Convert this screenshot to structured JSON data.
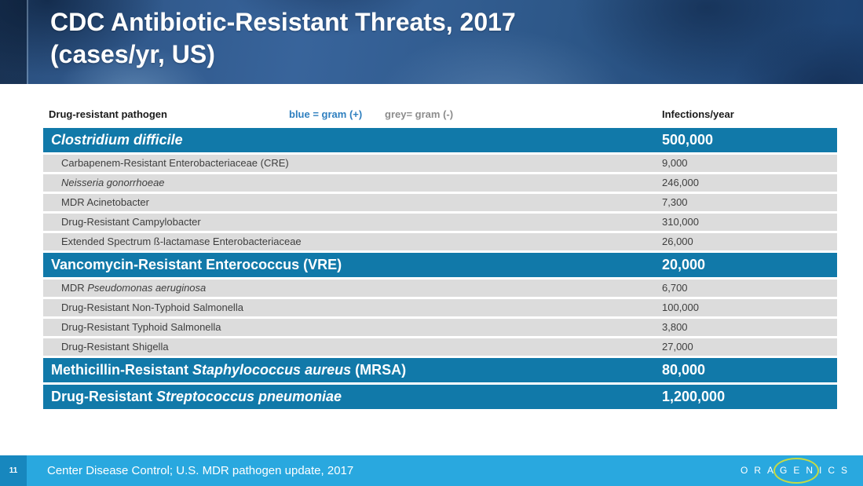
{
  "header": {
    "title_line1": "CDC Antibiotic-Resistant Threats, 2017",
    "title_line2": "(cases/yr, US)"
  },
  "table": {
    "pathogen_header": "Drug-resistant pathogen",
    "legend_gram_positive": "blue = gram (+)",
    "legend_gram_negative": "grey= gram (-)",
    "infections_header": "Infections/year",
    "rows": [
      {
        "type": "blue",
        "name_parts": [
          {
            "text": "Clostridium difficile",
            "italic": true
          }
        ],
        "value": "500,000"
      },
      {
        "type": "grey",
        "name_parts": [
          {
            "text": "Carbapenem-Resistant Enterobacteriaceae (CRE)",
            "italic": false
          }
        ],
        "value": "9,000"
      },
      {
        "type": "grey",
        "name_parts": [
          {
            "text": "Neisseria gonorrhoeae",
            "italic": true
          }
        ],
        "value": "246,000"
      },
      {
        "type": "grey",
        "name_parts": [
          {
            "text": "MDR Acinetobacter",
            "italic": false
          }
        ],
        "value": "7,300"
      },
      {
        "type": "grey",
        "name_parts": [
          {
            "text": "Drug-Resistant Campylobacter",
            "italic": false
          }
        ],
        "value": "310,000"
      },
      {
        "type": "grey",
        "name_parts": [
          {
            "text": "Extended Spectrum ß-lactamase Enterobacteriaceae",
            "italic": false
          }
        ],
        "value": "26,000"
      },
      {
        "type": "blue",
        "name_parts": [
          {
            "text": "Vancomycin-Resistant Enterococcus (VRE)",
            "italic": false
          }
        ],
        "value": "20,000"
      },
      {
        "type": "grey",
        "name_parts": [
          {
            "text": "MDR ",
            "italic": false
          },
          {
            "text": "Pseudomonas aeruginosa",
            "italic": true
          }
        ],
        "value": "6,700"
      },
      {
        "type": "grey",
        "name_parts": [
          {
            "text": "Drug-Resistant Non-Typhoid Salmonella",
            "italic": false
          }
        ],
        "value": "100,000"
      },
      {
        "type": "grey",
        "name_parts": [
          {
            "text": "Drug-Resistant Typhoid Salmonella",
            "italic": false
          }
        ],
        "value": "3,800"
      },
      {
        "type": "grey",
        "name_parts": [
          {
            "text": "Drug-Resistant Shigella",
            "italic": false
          }
        ],
        "value": "27,000"
      },
      {
        "type": "blue",
        "name_parts": [
          {
            "text": "Methicillin-Resistant ",
            "italic": false
          },
          {
            "text": "Staphylococcus aureus",
            "italic": true
          },
          {
            "text": " (MRSA)",
            "italic": false
          }
        ],
        "value": "80,000"
      },
      {
        "type": "blue",
        "name_parts": [
          {
            "text": "Drug-Resistant ",
            "italic": false
          },
          {
            "text": "Streptococcus pneumoniae",
            "italic": true
          }
        ],
        "value": "1,200,000"
      }
    ]
  },
  "footer": {
    "slide_number": "11",
    "citation": "Center Disease Control; U.S. MDR pathogen update, 2017",
    "logo_text": "ORAGENICS"
  },
  "colors": {
    "row_blue": "#1179a9",
    "row_grey": "#dcdcdc",
    "legend_blue": "#2e7fbf",
    "legend_grey": "#8c8c8c",
    "footer_bar": "#29a8df",
    "footer_square": "#1787be",
    "logo_ring": "#c6db44"
  }
}
